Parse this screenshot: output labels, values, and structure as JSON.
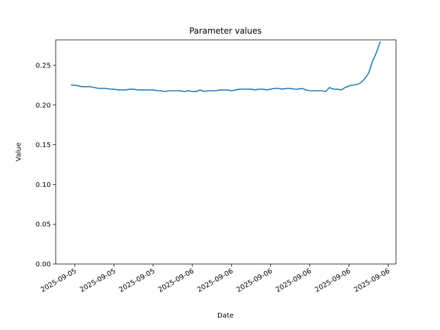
{
  "chart_data": {
    "type": "line",
    "title": "Parameter values",
    "x_label": "Date",
    "y_label": "Value",
    "x": [
      0,
      1,
      2,
      3,
      4,
      5,
      6,
      7,
      8,
      9,
      10,
      11,
      12,
      13,
      14,
      15,
      16,
      17,
      18,
      19,
      20,
      21,
      22,
      23,
      24,
      25,
      26,
      27,
      28,
      29,
      30,
      31,
      32,
      33,
      34,
      35,
      36,
      37,
      38,
      39,
      40,
      41,
      42,
      43,
      44,
      45,
      46,
      47,
      48,
      49,
      50,
      51,
      52,
      53,
      54,
      55,
      56,
      57,
      58,
      59,
      60,
      61,
      62,
      63,
      64,
      65,
      66,
      67,
      68,
      69,
      70,
      71,
      72,
      73,
      74,
      75,
      76,
      77,
      78,
      79
    ],
    "values": [
      0.225,
      0.225,
      0.224,
      0.223,
      0.223,
      0.223,
      0.222,
      0.221,
      0.221,
      0.221,
      0.22,
      0.22,
      0.219,
      0.219,
      0.219,
      0.22,
      0.22,
      0.219,
      0.219,
      0.219,
      0.219,
      0.219,
      0.218,
      0.218,
      0.217,
      0.218,
      0.218,
      0.218,
      0.218,
      0.217,
      0.218,
      0.217,
      0.217,
      0.219,
      0.217,
      0.218,
      0.218,
      0.218,
      0.219,
      0.219,
      0.219,
      0.218,
      0.219,
      0.22,
      0.22,
      0.22,
      0.22,
      0.219,
      0.22,
      0.22,
      0.219,
      0.22,
      0.221,
      0.221,
      0.22,
      0.221,
      0.221,
      0.22,
      0.22,
      0.221,
      0.219,
      0.218,
      0.218,
      0.218,
      0.218,
      0.217,
      0.222,
      0.22,
      0.22,
      0.219,
      0.222,
      0.224,
      0.225,
      0.226,
      0.228,
      0.233,
      0.24,
      0.255,
      0.266,
      0.28
    ],
    "color": "#1f77b4",
    "xlim": [
      -3.9,
      83
    ],
    "xticks": [
      {
        "value": 1,
        "label": "2025-09-05"
      },
      {
        "value": 11,
        "label": "2025-09-05"
      },
      {
        "value": 21,
        "label": "2025-09-05"
      },
      {
        "value": 31,
        "label": "2025-09-06"
      },
      {
        "value": 41,
        "label": "2025-09-06"
      },
      {
        "value": 51,
        "label": "2025-09-06"
      },
      {
        "value": 61,
        "label": "2025-09-06"
      },
      {
        "value": 71,
        "label": "2025-09-06"
      },
      {
        "value": 81,
        "label": "2025-09-06"
      }
    ],
    "ylim": [
      0,
      0.282
    ],
    "yticks": [
      {
        "value": 0,
        "label": "0.00"
      },
      {
        "value": 0.05,
        "label": "0.05"
      },
      {
        "value": 0.1,
        "label": "0.10"
      },
      {
        "value": 0.15,
        "label": "0.15"
      },
      {
        "value": 0.2,
        "label": "0.20"
      },
      {
        "value": 0.25,
        "label": "0.25"
      }
    ],
    "grid": false
  }
}
